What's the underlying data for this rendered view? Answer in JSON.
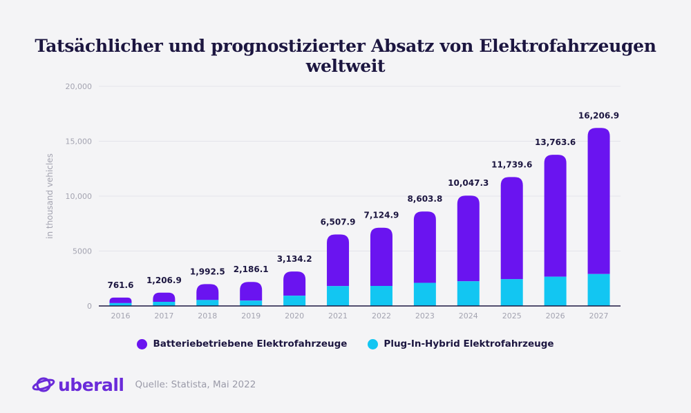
{
  "title": "Tatsächlicher und prognostizierter Absatz von Elektrofahrzeugen weltweit",
  "colors": {
    "bev": "#6a14f0",
    "phev": "#12c6f2",
    "title": "#1c1640",
    "axis": "#1c1640",
    "grid": "#e3e3ea",
    "brand": "#6a2bd9"
  },
  "chart_data": {
    "type": "bar",
    "stacked": true,
    "ylabel": "in thousand vehicles",
    "ylim": [
      0,
      20000
    ],
    "yticks": [
      "0",
      "5000",
      "10,000",
      "15,000",
      "20,000"
    ],
    "ytick_values": [
      0,
      5000,
      10000,
      15000,
      20000
    ],
    "categories": [
      "2016",
      "2017",
      "2018",
      "2019",
      "2020",
      "2021",
      "2022",
      "2023",
      "2024",
      "2025",
      "2026",
      "2027"
    ],
    "totals": [
      761.6,
      1206.9,
      1992.5,
      2186.1,
      3134.2,
      6507.9,
      7124.9,
      8603.8,
      10047.3,
      11739.6,
      13763.6,
      16206.9
    ],
    "total_labels": [
      "761.6",
      "1,206.9",
      "1,992.5",
      "2,186.1",
      "3,134.2",
      "6,507.9",
      "7,124.9",
      "8,603.8",
      "10,047.3",
      "11,739.6",
      "13,763.6",
      "16,206.9"
    ],
    "series": [
      {
        "name": "Batteriebetriebene Elektrofahrzeuge",
        "values": [
          500,
          830,
          1450,
          1700,
          2200,
          4700,
          5300,
          6500,
          7800,
          9300,
          11100,
          13300
        ]
      },
      {
        "name": "Plug-In-Hybrid Elektrofahrzeuge",
        "values": [
          261.6,
          376.9,
          542.5,
          486.1,
          934.2,
          1807.9,
          1824.9,
          2103.8,
          2247.3,
          2439.6,
          2663.6,
          2906.9
        ]
      }
    ],
    "legend": "bottom-center",
    "grid": true
  },
  "footer": {
    "brand": "uberall",
    "source": "Quelle: Statista, Mai 2022"
  }
}
